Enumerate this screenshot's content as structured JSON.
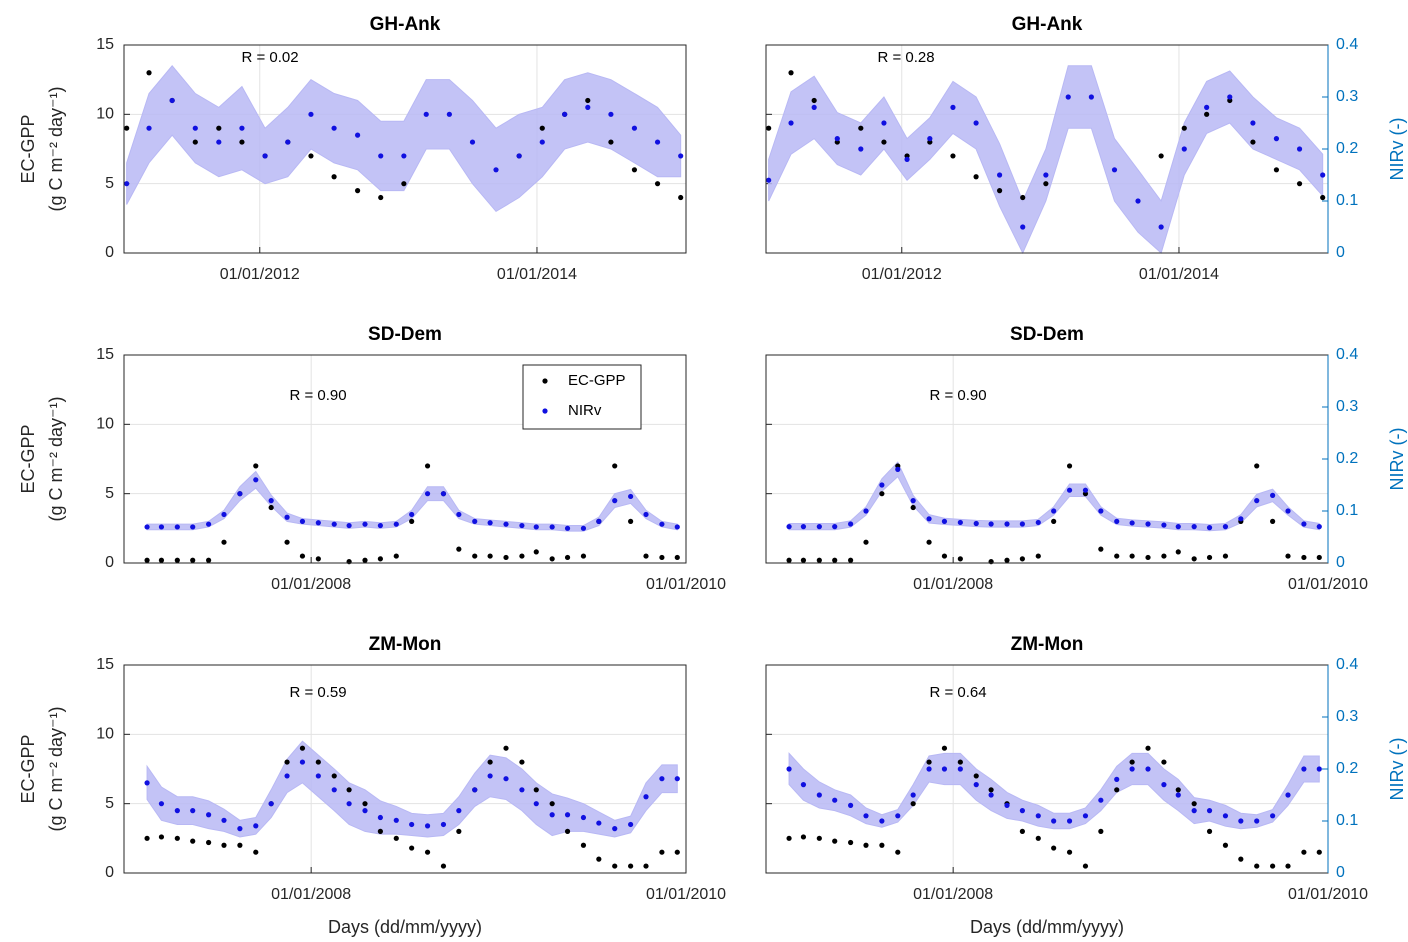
{
  "chart_data": [
    {
      "type": "scatter",
      "title": "GH-Ank",
      "annotation": "R = 0.02",
      "ylabel": [
        "EC-GPP",
        "(g C m⁻² day⁻¹)"
      ],
      "ytick_labels": true,
      "xlim": [
        "08/01/2011",
        "29/01/2015"
      ],
      "xticks": [
        "01/01/2012",
        "01/01/2014"
      ],
      "ylim": [
        0,
        15
      ],
      "yticks": [
        0,
        5,
        10,
        15
      ],
      "grid": true,
      "x": [
        "15/01/2011",
        "15/03/2011",
        "15/05/2011",
        "15/07/2011",
        "15/09/2011",
        "15/11/2011",
        "15/01/2012",
        "15/03/2012",
        "15/05/2012",
        "15/07/2012",
        "15/09/2012",
        "15/11/2012",
        "15/01/2013",
        "15/03/2013",
        "15/05/2013",
        "15/07/2013",
        "15/09/2013",
        "15/11/2013",
        "15/01/2014",
        "15/03/2014",
        "15/05/2014",
        "15/07/2014",
        "15/09/2014",
        "15/11/2014",
        "15/01/2015"
      ],
      "series": [
        {
          "name": "EC-GPP",
          "color": "#000000",
          "values": [
            9,
            13,
            11,
            8,
            9,
            8,
            7,
            8,
            7,
            5.5,
            4.5,
            4,
            5,
            null,
            null,
            null,
            null,
            7,
            9,
            10,
            11,
            8,
            6,
            5,
            4
          ]
        },
        {
          "name": "NIRv",
          "color": "#1010e0",
          "band_color": "#b8b8f4",
          "values": [
            5,
            9,
            11,
            9,
            8,
            9,
            7,
            8,
            10,
            9,
            8.5,
            7,
            7,
            10,
            10,
            8,
            6,
            7,
            8,
            10,
            10.5,
            10,
            9,
            8,
            7
          ],
          "errors": [
            1.5,
            2.5,
            2.5,
            2.5,
            2.5,
            3,
            2,
            2.5,
            2.5,
            2.5,
            2.5,
            2.5,
            2.5,
            2.5,
            2.5,
            3,
            3,
            3,
            2.5,
            2.5,
            2.5,
            2.5,
            2.5,
            2.5,
            1.5
          ]
        }
      ]
    },
    {
      "type": "scatter",
      "title": "GH-Ank",
      "annotation": "R = 0.28",
      "y2label": "NIRv (-)",
      "ytick_labels": false,
      "xlim": [
        "08/01/2011",
        "29/01/2015"
      ],
      "xticks": [
        "01/01/2012",
        "01/01/2014"
      ],
      "ylim": [
        0,
        15
      ],
      "yticks": [
        0,
        5,
        10,
        15
      ],
      "y2lim": [
        0,
        0.4
      ],
      "y2ticks": [
        0,
        0.1,
        0.2,
        0.3,
        0.4
      ],
      "grid": true,
      "x": [
        "15/01/2011",
        "15/03/2011",
        "15/05/2011",
        "15/07/2011",
        "15/09/2011",
        "15/11/2011",
        "15/01/2012",
        "15/03/2012",
        "15/05/2012",
        "15/07/2012",
        "15/09/2012",
        "15/11/2012",
        "15/01/2013",
        "15/03/2013",
        "15/05/2013",
        "15/07/2013",
        "15/09/2013",
        "15/11/2013",
        "15/01/2014",
        "15/03/2014",
        "15/05/2014",
        "15/07/2014",
        "15/09/2014",
        "15/11/2014",
        "15/01/2015"
      ],
      "series": [
        {
          "name": "EC-GPP",
          "color": "#000000",
          "values": [
            9,
            13,
            11,
            8,
            9,
            8,
            7,
            8,
            7,
            5.5,
            4.5,
            4,
            5,
            null,
            null,
            null,
            null,
            7,
            9,
            10,
            11,
            8,
            6,
            5,
            4
          ]
        },
        {
          "name": "NIRv",
          "color": "#1010e0",
          "band_color": "#b8b8f4",
          "axis": "y2",
          "values": [
            0.14,
            0.25,
            0.28,
            0.22,
            0.2,
            0.25,
            0.18,
            0.22,
            0.28,
            0.25,
            0.15,
            0.05,
            0.15,
            0.3,
            0.3,
            0.16,
            0.1,
            0.05,
            0.2,
            0.28,
            0.3,
            0.25,
            0.22,
            0.2,
            0.15
          ],
          "errors": [
            0.04,
            0.06,
            0.06,
            0.05,
            0.05,
            0.05,
            0.04,
            0.04,
            0.05,
            0.05,
            0.06,
            0.05,
            0.05,
            0.06,
            0.06,
            0.06,
            0.06,
            0.05,
            0.05,
            0.05,
            0.05,
            0.05,
            0.04,
            0.04,
            0.04
          ]
        }
      ]
    },
    {
      "type": "scatter",
      "title": "SD-Dem",
      "annotation": "R = 0.90",
      "ylabel": [
        "EC-GPP",
        "(g C m⁻² day⁻¹)"
      ],
      "ytick_labels": true,
      "legend": "upper right",
      "xlim": [
        "01/01/2007",
        "01/01/2010"
      ],
      "xticks": [
        "01/01/2008",
        "01/01/2010"
      ],
      "ylim": [
        0,
        15
      ],
      "yticks": [
        0,
        5,
        10,
        15
      ],
      "grid": true,
      "x": [
        "15/02/2007",
        "15/03/2007",
        "15/04/2007",
        "15/05/2007",
        "15/06/2007",
        "15/07/2007",
        "15/08/2007",
        "15/09/2007",
        "15/10/2007",
        "15/11/2007",
        "15/12/2007",
        "15/01/2008",
        "15/02/2008",
        "15/03/2008",
        "15/04/2008",
        "15/05/2008",
        "15/06/2008",
        "15/07/2008",
        "15/08/2008",
        "15/09/2008",
        "15/10/2008",
        "15/11/2008",
        "15/12/2008",
        "15/01/2009",
        "15/02/2009",
        "15/03/2009",
        "15/04/2009",
        "15/05/2009",
        "15/06/2009",
        "15/07/2009",
        "15/08/2009",
        "15/09/2009",
        "15/10/2009",
        "15/11/2009",
        "15/12/2009"
      ],
      "series": [
        {
          "name": "EC-GPP",
          "color": "#000000",
          "values": [
            0.2,
            0.2,
            0.2,
            0.2,
            0.2,
            1.5,
            5,
            7,
            4,
            1.5,
            0.5,
            0.3,
            null,
            0.1,
            0.2,
            0.3,
            0.5,
            3,
            7,
            5,
            1,
            0.5,
            0.5,
            0.4,
            0.5,
            0.8,
            0.3,
            0.4,
            0.5,
            3,
            7,
            3,
            0.5,
            0.4,
            0.4
          ]
        },
        {
          "name": "NIRv",
          "color": "#1010e0",
          "band_color": "#b8b8f4",
          "values": [
            2.6,
            2.6,
            2.6,
            2.6,
            2.8,
            3.5,
            5,
            6,
            4.5,
            3.3,
            3,
            2.9,
            2.8,
            2.7,
            2.8,
            2.7,
            2.8,
            3.5,
            5,
            5,
            3.5,
            3,
            2.9,
            2.8,
            2.7,
            2.6,
            2.6,
            2.5,
            2.5,
            3,
            4.5,
            4.8,
            3.5,
            2.8,
            2.6
          ],
          "errors": [
            0.2,
            0.2,
            0.2,
            0.2,
            0.2,
            0.3,
            0.5,
            0.6,
            0.4,
            0.3,
            0.2,
            0.2,
            0.2,
            0.2,
            0.2,
            0.2,
            0.2,
            0.3,
            0.5,
            0.5,
            0.3,
            0.2,
            0.2,
            0.2,
            0.2,
            0.2,
            0.2,
            0.2,
            0.2,
            0.3,
            0.5,
            0.5,
            0.3,
            0.2,
            0.2
          ]
        }
      ]
    },
    {
      "type": "scatter",
      "title": "SD-Dem",
      "annotation": "R = 0.90",
      "y2label": "NIRv (-)",
      "ytick_labels": false,
      "xlim": [
        "01/01/2007",
        "01/01/2010"
      ],
      "xticks": [
        "01/01/2008",
        "01/01/2010"
      ],
      "ylim": [
        0,
        15
      ],
      "yticks": [
        0,
        5,
        10,
        15
      ],
      "y2lim": [
        0,
        0.4
      ],
      "y2ticks": [
        0,
        0.1,
        0.2,
        0.3,
        0.4
      ],
      "grid": true,
      "x": [
        "15/02/2007",
        "15/03/2007",
        "15/04/2007",
        "15/05/2007",
        "15/06/2007",
        "15/07/2007",
        "15/08/2007",
        "15/09/2007",
        "15/10/2007",
        "15/11/2007",
        "15/12/2007",
        "15/01/2008",
        "15/02/2008",
        "15/03/2008",
        "15/04/2008",
        "15/05/2008",
        "15/06/2008",
        "15/07/2008",
        "15/08/2008",
        "15/09/2008",
        "15/10/2008",
        "15/11/2008",
        "15/12/2008",
        "15/01/2009",
        "15/02/2009",
        "15/03/2009",
        "15/04/2009",
        "15/05/2009",
        "15/06/2009",
        "15/07/2009",
        "15/08/2009",
        "15/09/2009",
        "15/10/2009",
        "15/11/2009",
        "15/12/2009"
      ],
      "series": [
        {
          "name": "EC-GPP",
          "color": "#000000",
          "values": [
            0.2,
            0.2,
            0.2,
            0.2,
            0.2,
            1.5,
            5,
            7,
            4,
            1.5,
            0.5,
            0.3,
            null,
            0.1,
            0.2,
            0.3,
            0.5,
            3,
            7,
            5,
            1,
            0.5,
            0.5,
            0.4,
            0.5,
            0.8,
            0.3,
            0.4,
            0.5,
            3,
            7,
            3,
            0.5,
            0.4,
            0.4
          ]
        },
        {
          "name": "NIRv",
          "color": "#1010e0",
          "band_color": "#b8b8f4",
          "axis": "y2",
          "values": [
            0.07,
            0.07,
            0.07,
            0.07,
            0.075,
            0.1,
            0.15,
            0.18,
            0.12,
            0.085,
            0.08,
            0.078,
            0.076,
            0.075,
            0.075,
            0.075,
            0.078,
            0.1,
            0.14,
            0.14,
            0.1,
            0.08,
            0.077,
            0.075,
            0.073,
            0.07,
            0.07,
            0.068,
            0.07,
            0.085,
            0.12,
            0.13,
            0.1,
            0.075,
            0.07
          ],
          "errors": [
            0.006,
            0.006,
            0.006,
            0.006,
            0.006,
            0.008,
            0.012,
            0.014,
            0.01,
            0.008,
            0.006,
            0.006,
            0.006,
            0.006,
            0.006,
            0.006,
            0.006,
            0.008,
            0.012,
            0.012,
            0.008,
            0.006,
            0.006,
            0.006,
            0.006,
            0.006,
            0.006,
            0.006,
            0.006,
            0.008,
            0.012,
            0.012,
            0.008,
            0.006,
            0.006
          ]
        }
      ]
    },
    {
      "type": "scatter",
      "title": "ZM-Mon",
      "annotation": "R = 0.59",
      "ylabel": [
        "EC-GPP",
        "(g C m⁻² day⁻¹)"
      ],
      "ytick_labels": true,
      "xlabel": "Days (dd/mm/yyyy)",
      "xlim": [
        "01/01/2007",
        "01/01/2010"
      ],
      "xticks": [
        "01/01/2008",
        "01/01/2010"
      ],
      "ylim": [
        0,
        15
      ],
      "yticks": [
        0,
        5,
        10,
        15
      ],
      "grid": true,
      "x": [
        "15/02/2007",
        "15/03/2007",
        "15/04/2007",
        "15/05/2007",
        "15/06/2007",
        "15/07/2007",
        "15/08/2007",
        "15/09/2007",
        "15/10/2007",
        "15/11/2007",
        "15/12/2007",
        "15/01/2008",
        "15/02/2008",
        "15/03/2008",
        "15/04/2008",
        "15/05/2008",
        "15/06/2008",
        "15/07/2008",
        "15/08/2008",
        "15/09/2008",
        "15/10/2008",
        "15/11/2008",
        "15/12/2008",
        "15/01/2009",
        "15/02/2009",
        "15/03/2009",
        "15/04/2009",
        "15/05/2009",
        "15/06/2009",
        "15/07/2009",
        "15/08/2009",
        "15/09/2009",
        "15/10/2009",
        "15/11/2009",
        "15/12/2009"
      ],
      "series": [
        {
          "name": "EC-GPP",
          "color": "#000000",
          "values": [
            2.5,
            2.6,
            2.5,
            2.3,
            2.2,
            2,
            2,
            1.5,
            5,
            8,
            9,
            8,
            7,
            6,
            5,
            3,
            2.5,
            1.8,
            1.5,
            0.5,
            3,
            6,
            8,
            9,
            8,
            6,
            5,
            3,
            2,
            1,
            0.5,
            0.5,
            0.5,
            1.5,
            1.5
          ]
        },
        {
          "name": "NIRv",
          "color": "#1010e0",
          "band_color": "#b8b8f4",
          "values": [
            6.5,
            5,
            4.5,
            4.5,
            4.2,
            3.8,
            3.2,
            3.4,
            5,
            7,
            8,
            7,
            6,
            5,
            4.5,
            4,
            3.8,
            3.5,
            3.4,
            3.5,
            4.5,
            6,
            7,
            6.8,
            6,
            5,
            4.2,
            4.2,
            4,
            3.6,
            3.2,
            3.5,
            5.5,
            6.8,
            6.8
          ],
          "errors": [
            1.2,
            1.2,
            1,
            1,
            1,
            0.8,
            0.6,
            0.6,
            1,
            1.2,
            1.5,
            1.5,
            1.5,
            1.5,
            1.5,
            1.2,
            1,
            0.8,
            0.8,
            0.8,
            1,
            1.2,
            1.5,
            1.5,
            1.5,
            1.5,
            1.5,
            1.2,
            1,
            0.8,
            0.6,
            0.6,
            1,
            1,
            1
          ]
        }
      ]
    },
    {
      "type": "scatter",
      "title": "ZM-Mon",
      "annotation": "R = 0.64",
      "y2label": "NIRv (-)",
      "ytick_labels": false,
      "xlabel": "Days (dd/mm/yyyy)",
      "xlim": [
        "01/01/2007",
        "01/01/2010"
      ],
      "xticks": [
        "01/01/2008",
        "01/01/2010"
      ],
      "ylim": [
        0,
        15
      ],
      "yticks": [
        0,
        5,
        10,
        15
      ],
      "y2lim": [
        0,
        0.4
      ],
      "y2ticks": [
        0,
        0.1,
        0.2,
        0.3,
        0.4
      ],
      "grid": true,
      "x": [
        "15/02/2007",
        "15/03/2007",
        "15/04/2007",
        "15/05/2007",
        "15/06/2007",
        "15/07/2007",
        "15/08/2007",
        "15/09/2007",
        "15/10/2007",
        "15/11/2007",
        "15/12/2007",
        "15/01/2008",
        "15/02/2008",
        "15/03/2008",
        "15/04/2008",
        "15/05/2008",
        "15/06/2008",
        "15/07/2008",
        "15/08/2008",
        "15/09/2008",
        "15/10/2008",
        "15/11/2008",
        "15/12/2008",
        "15/01/2009",
        "15/02/2009",
        "15/03/2009",
        "15/04/2009",
        "15/05/2009",
        "15/06/2009",
        "15/07/2009",
        "15/08/2009",
        "15/09/2009",
        "15/10/2009",
        "15/11/2009",
        "15/12/2009"
      ],
      "series": [
        {
          "name": "EC-GPP",
          "color": "#000000",
          "values": [
            2.5,
            2.6,
            2.5,
            2.3,
            2.2,
            2,
            2,
            1.5,
            5,
            8,
            9,
            8,
            7,
            6,
            5,
            3,
            2.5,
            1.8,
            1.5,
            0.5,
            3,
            6,
            8,
            9,
            8,
            6,
            5,
            3,
            2,
            1,
            0.5,
            0.5,
            0.5,
            1.5,
            1.5
          ]
        },
        {
          "name": "NIRv",
          "color": "#1010e0",
          "band_color": "#b8b8f4",
          "axis": "y2",
          "values": [
            0.2,
            0.17,
            0.15,
            0.14,
            0.13,
            0.11,
            0.1,
            0.11,
            0.15,
            0.2,
            0.2,
            0.2,
            0.17,
            0.15,
            0.13,
            0.12,
            0.11,
            0.1,
            0.1,
            0.11,
            0.14,
            0.18,
            0.2,
            0.2,
            0.17,
            0.15,
            0.12,
            0.12,
            0.11,
            0.1,
            0.1,
            0.11,
            0.15,
            0.2,
            0.2
          ],
          "errors": [
            0.03,
            0.03,
            0.025,
            0.02,
            0.02,
            0.015,
            0.012,
            0.012,
            0.02,
            0.025,
            0.03,
            0.03,
            0.03,
            0.03,
            0.025,
            0.02,
            0.02,
            0.015,
            0.015,
            0.015,
            0.02,
            0.025,
            0.03,
            0.03,
            0.03,
            0.03,
            0.025,
            0.02,
            0.02,
            0.015,
            0.012,
            0.012,
            0.02,
            0.025,
            0.025
          ]
        }
      ]
    }
  ]
}
